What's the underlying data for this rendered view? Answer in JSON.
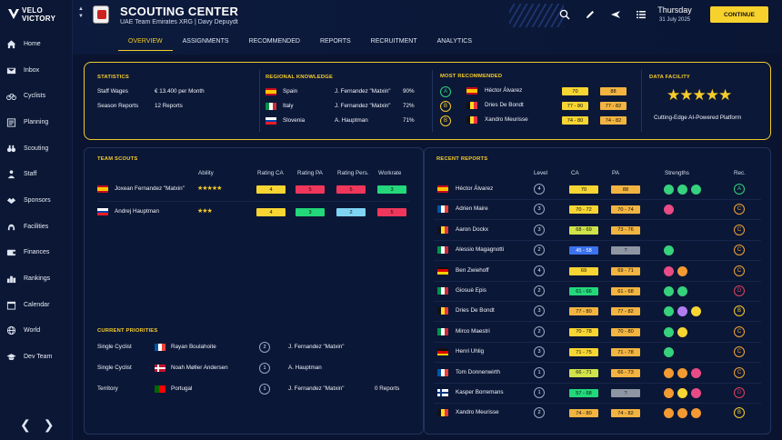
{
  "app": {
    "logo_line1": "VELO",
    "logo_line2": "VICTORY"
  },
  "nav": [
    {
      "label": "Home",
      "icon": "home-icon"
    },
    {
      "label": "Inbox",
      "icon": "inbox-icon"
    },
    {
      "label": "Cyclists",
      "icon": "bike-icon"
    },
    {
      "label": "Planning",
      "icon": "planning-icon"
    },
    {
      "label": "Scouting",
      "icon": "binoculars-icon"
    },
    {
      "label": "Staff",
      "icon": "staff-icon"
    },
    {
      "label": "Sponsors",
      "icon": "handshake-icon"
    },
    {
      "label": "Facilities",
      "icon": "facilities-icon"
    },
    {
      "label": "Finances",
      "icon": "finances-icon"
    },
    {
      "label": "Rankings",
      "icon": "rankings-icon"
    },
    {
      "label": "Calendar",
      "icon": "calendar-icon"
    },
    {
      "label": "World",
      "icon": "globe-icon"
    },
    {
      "label": "Dev Team",
      "icon": "graduation-icon"
    }
  ],
  "pager": {
    "prev": "❮",
    "next": "❯"
  },
  "header": {
    "title": "SCOUTING CENTER",
    "subtitle": "UAE Team Emirates XRG | Davy Depuydt",
    "day": "Thursday",
    "date": "31 July 2025",
    "continue": "CONTINUE"
  },
  "tabs": [
    "OVERVIEW",
    "ASSIGNMENTS",
    "RECOMMENDED",
    "REPORTS",
    "RECRUITMENT",
    "ANALYTICS"
  ],
  "statistics": {
    "title": "STATISTICS",
    "rows": [
      {
        "label": "Staff Wages",
        "value": "€ 13.400 per Month"
      },
      {
        "label": "Season Reports",
        "value": "12 Reports"
      }
    ]
  },
  "regional": {
    "title": "REGIONAL KNOWLEDGE",
    "rows": [
      {
        "country": "Spain",
        "scout": "J. Fernandez \"Matxin\"",
        "pct": "90%",
        "flag": "es"
      },
      {
        "country": "Italy",
        "scout": "J. Fernandez \"Matxin\"",
        "pct": "72%",
        "flag": "it"
      },
      {
        "country": "Slovenia",
        "scout": "A. Hauptman",
        "pct": "71%",
        "flag": "si"
      }
    ]
  },
  "most_recommended": {
    "title": "MOST RECOMMENDED",
    "rows": [
      {
        "grade": "A",
        "name": "Héctor Álvarez",
        "ca": "70",
        "pa": "88",
        "flag": "es"
      },
      {
        "grade": "B",
        "name": "Dries De Bondt",
        "ca": "77 - 80",
        "pa": "77 - 82",
        "flag": "be"
      },
      {
        "grade": "B",
        "name": "Xandro Meurisse",
        "ca": "74 - 80",
        "pa": "74 - 82",
        "flag": "be"
      }
    ]
  },
  "data_facility": {
    "title": "DATA FACILITY",
    "stars": "★★★★★",
    "caption": "Cutting-Edge AI-Powered Platform"
  },
  "team_scouts": {
    "title": "TEAM SCOUTS",
    "headers": [
      "Ability",
      "Rating CA",
      "Rating PA",
      "Rating Pers.",
      "Workrate"
    ],
    "rows": [
      {
        "name": "Joxean Fernandez \"Matxin\"",
        "stars": "★★★★★",
        "ca": "4",
        "pa": "5",
        "pers": "5",
        "work": "3",
        "flag": "es"
      },
      {
        "name": "Andrej Hauptman",
        "stars": "★★★",
        "ca": "4",
        "pa": "3",
        "pers": "2",
        "work": "5",
        "flag": "si"
      }
    ]
  },
  "priorities": {
    "title": "CURRENT PRIORITIES",
    "rows": [
      {
        "type": "Single Cyclist",
        "target": "Rayan Boulahoite",
        "level": "2",
        "scout": "J. Fernandez \"Matxin\"",
        "reports": "",
        "flag": "fr"
      },
      {
        "type": "Single Cyclist",
        "target": "Noah Møller Andersen",
        "level": "1",
        "scout": "A. Hauptman",
        "reports": "",
        "flag": "dk"
      },
      {
        "type": "Territory",
        "target": "Portugal",
        "level": "1",
        "scout": "J. Fernandez \"Matxin\"",
        "reports": "0 Reports",
        "flag": "pt"
      }
    ]
  },
  "recent_reports": {
    "title": "RECENT REPORTS",
    "headers": [
      "Level",
      "CA",
      "PA",
      "Strengths",
      "Rec."
    ],
    "rows": [
      {
        "name": "Héctor Álvarez",
        "flag": "es",
        "level": "4",
        "ca": "70",
        "pa": "88",
        "strengths": [
          "gr",
          "gr",
          "gr"
        ],
        "rec": "A"
      },
      {
        "name": "Adrien Maire",
        "flag": "fr",
        "level": "3",
        "ca": "70 - 72",
        "pa": "70 - 74",
        "strengths": [
          "pi"
        ],
        "rec": "C"
      },
      {
        "name": "Aaron Dockx",
        "flag": "be",
        "level": "3",
        "ca": "68 - 69",
        "pa": "73 - 76",
        "strengths": [],
        "rec": "C"
      },
      {
        "name": "Alessio Magagnotti",
        "flag": "it",
        "level": "2",
        "ca": "45 - 58",
        "pa": "?",
        "strengths": [
          "gr"
        ],
        "rec": "C"
      },
      {
        "name": "Ben Zwiehoff",
        "flag": "de",
        "level": "4",
        "ca": "69",
        "pa": "69 - 71",
        "strengths": [
          "pi",
          "or"
        ],
        "rec": "C"
      },
      {
        "name": "Giosuè Epis",
        "flag": "it",
        "level": "2",
        "ca": "61 - 66",
        "pa": "61 - 68",
        "strengths": [
          "gr",
          "gr"
        ],
        "rec": "D"
      },
      {
        "name": "Dries De Bondt",
        "flag": "be",
        "level": "3",
        "ca": "77 - 80",
        "pa": "77 - 82",
        "strengths": [
          "gr",
          "vi",
          "ye"
        ],
        "rec": "B"
      },
      {
        "name": "Mirco Maestri",
        "flag": "it",
        "level": "2",
        "ca": "70 - 78",
        "pa": "70 - 80",
        "strengths": [
          "gr",
          "ye"
        ],
        "rec": "C"
      },
      {
        "name": "Henri Uhlig",
        "flag": "de",
        "level": "3",
        "ca": "71 - 75",
        "pa": "71 - 78",
        "strengths": [
          "gr"
        ],
        "rec": "C"
      },
      {
        "name": "Tom Donnenwirth",
        "flag": "fr",
        "level": "1",
        "ca": "66 - 71",
        "pa": "66 - 73",
        "strengths": [
          "or",
          "or",
          "pi"
        ],
        "rec": "C"
      },
      {
        "name": "Kasper Borremans",
        "flag": "fi",
        "level": "1",
        "ca": "57 - 68",
        "pa": "?",
        "strengths": [
          "or",
          "ye",
          "pi"
        ],
        "rec": "D"
      },
      {
        "name": "Xandro Meurisse",
        "flag": "be",
        "level": "2",
        "ca": "74 - 80",
        "pa": "74 - 82",
        "strengths": [
          "or",
          "or",
          "or"
        ],
        "rec": "B"
      }
    ]
  },
  "colors": {
    "accent": "#f5cc2a",
    "background": "#0a1430"
  }
}
